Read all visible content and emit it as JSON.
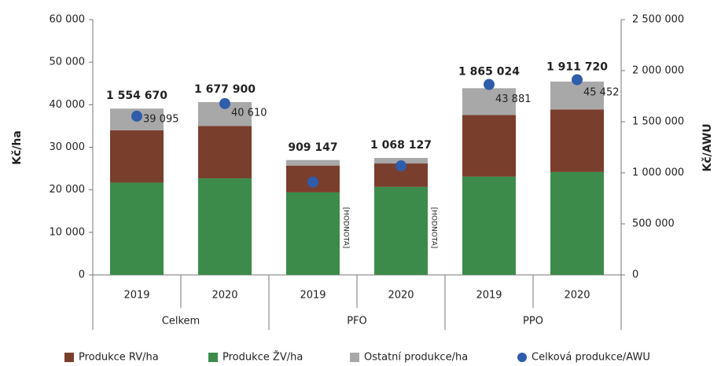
{
  "chart_data": {
    "type": "bar",
    "stacked": true,
    "y_label": "Kč/ha",
    "y2_label": "Kč/AWU",
    "categories": [
      "2019",
      "2020",
      "2019",
      "2020",
      "2019",
      "2020"
    ],
    "groups": [
      "Celkem",
      "PFO",
      "PPO"
    ],
    "series": [
      {
        "name": "Produkce ŽV/ha",
        "color": "#3d8b4b",
        "values": [
          21700,
          22700,
          19400,
          20700,
          23100,
          24200
        ]
      },
      {
        "name": "Produkce RV/ha",
        "color": "#7a3e2d",
        "values": [
          12300,
          12300,
          6300,
          5500,
          14500,
          14700
        ]
      },
      {
        "name": "Ostatní produkce/ha",
        "color": "#a8a8a8",
        "values": [
          5095,
          5610,
          1300,
          1300,
          6281,
          6552
        ]
      },
      {
        "name": "Celková produkce/AWU",
        "color": "#2f5cab",
        "type": "scatter",
        "axis": "y2",
        "values": [
          1554670,
          1677900,
          909147,
          1068127,
          1865024,
          1911720
        ],
        "value_labels": [
          "1 554 670",
          "1 677 900",
          "909 147",
          "1 068 127",
          "1 865 024",
          "1 911 720"
        ]
      }
    ],
    "totals": {
      "values": [
        39095,
        40610,
        null,
        null,
        43881,
        45452
      ],
      "value_labels": [
        "39 095",
        "40 610",
        "[HODNOTA]",
        "[HODNOTA]",
        "43 881",
        "45 452"
      ]
    },
    "ylim": [
      0,
      60000
    ],
    "yticks": [
      0,
      {
        "value": 10000,
        "label": "10 000"
      },
      {
        "value": 20000,
        "label": "20 000"
      },
      {
        "value": 30000,
        "label": "30 000"
      },
      {
        "value": 40000,
        "label": "40 000"
      },
      {
        "value": 50000,
        "label": "50 000"
      },
      {
        "value": 60000,
        "label": "60 000"
      }
    ],
    "y2lim": [
      0,
      2500000
    ],
    "y2ticks": [
      0,
      {
        "value": 500000,
        "label": "500 000"
      },
      {
        "value": 1000000,
        "label": "1 000 000"
      },
      {
        "value": 1500000,
        "label": "1 500 000"
      },
      {
        "value": 2000000,
        "label": "2 000 000"
      },
      {
        "value": 2500000,
        "label": "2 500 000"
      }
    ],
    "legend": "bottom"
  }
}
